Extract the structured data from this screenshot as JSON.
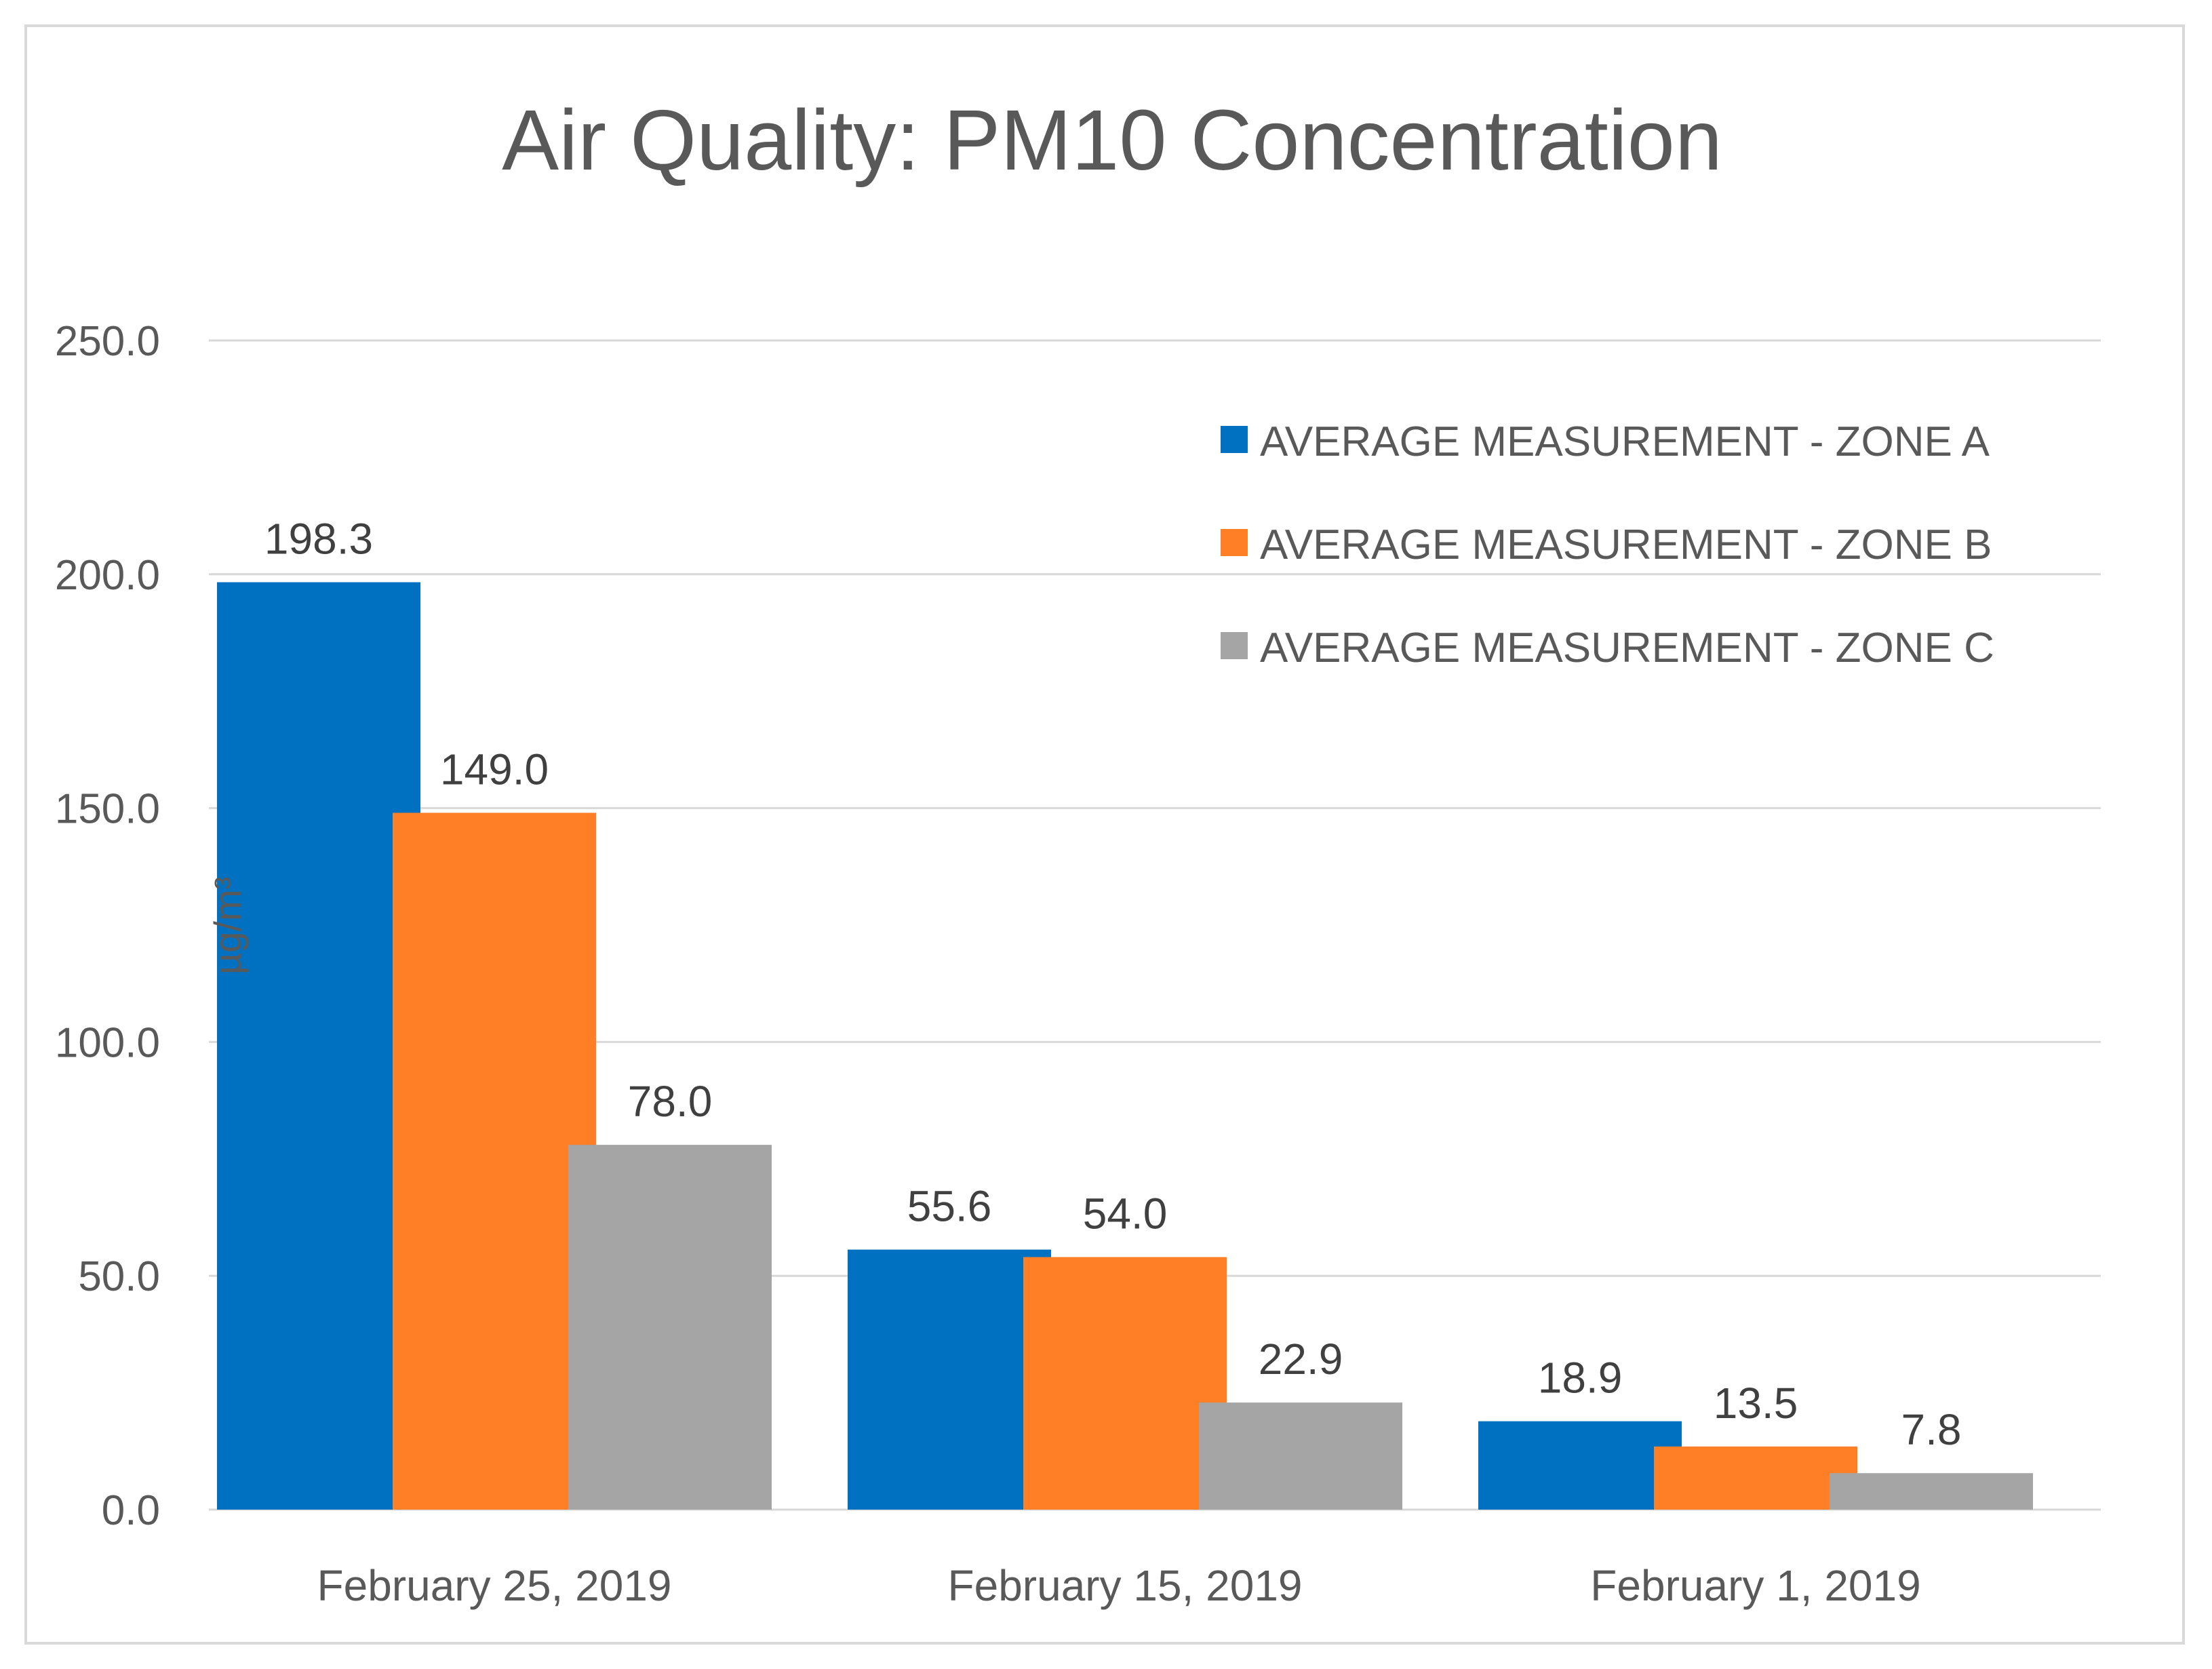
{
  "chart_data": {
    "type": "bar",
    "title": "Air Quality: PM10 Concentration",
    "xlabel": "",
    "ylabel": "µg/m³",
    "ylim": [
      0,
      250
    ],
    "yticks": [
      "0.0",
      "50.0",
      "100.0",
      "150.0",
      "200.0",
      "250.0"
    ],
    "grid": true,
    "legend_position": "top-right",
    "categories": [
      "February 25, 2019",
      "February 15, 2019",
      "February 1, 2019"
    ],
    "series": [
      {
        "name": "AVERAGE MEASUREMENT - ZONE A",
        "color": "#0070C0",
        "values": [
          198.3,
          55.6,
          18.9
        ],
        "labels": [
          "198.3",
          "55.6",
          "18.9"
        ]
      },
      {
        "name": "AVERAGE MEASUREMENT - ZONE B",
        "color": "#FF7F27",
        "values": [
          149.0,
          54.0,
          13.5
        ],
        "labels": [
          "149.0",
          "54.0",
          "13.5"
        ]
      },
      {
        "name": "AVERAGE MEASUREMENT - ZONE C",
        "color": "#A5A5A5",
        "values": [
          78.0,
          22.9,
          7.8
        ],
        "labels": [
          "78.0",
          "22.9",
          "7.8"
        ]
      }
    ]
  }
}
